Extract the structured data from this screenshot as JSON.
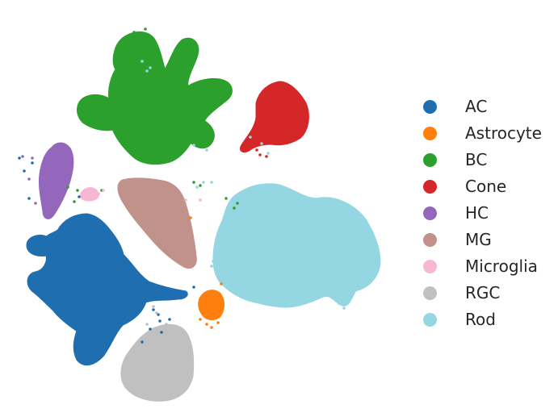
{
  "chart_data": {
    "type": "scatter",
    "title": "",
    "xlabel": "",
    "ylabel": "",
    "grid": false,
    "axes_visible": false,
    "legend_position": "right",
    "series": [
      {
        "name": "AC",
        "color": "#1f6fb0",
        "cluster": "ac"
      },
      {
        "name": "Astrocyte",
        "color": "#ff7f0e",
        "cluster": "astro"
      },
      {
        "name": "BC",
        "color": "#2ca02c",
        "cluster": "bc"
      },
      {
        "name": "Cone",
        "color": "#d62728",
        "cluster": "cone"
      },
      {
        "name": "HC",
        "color": "#9467bd",
        "cluster": "hc"
      },
      {
        "name": "MG",
        "color": "#c0928a",
        "cluster": "mg"
      },
      {
        "name": "Microglia",
        "color": "#f7b6d2",
        "cluster": "micro"
      },
      {
        "name": "RGC",
        "color": "#c0c0c0",
        "cluster": "rgc"
      },
      {
        "name": "Rod",
        "color": "#94d6e2",
        "cluster": "rod"
      }
    ]
  }
}
